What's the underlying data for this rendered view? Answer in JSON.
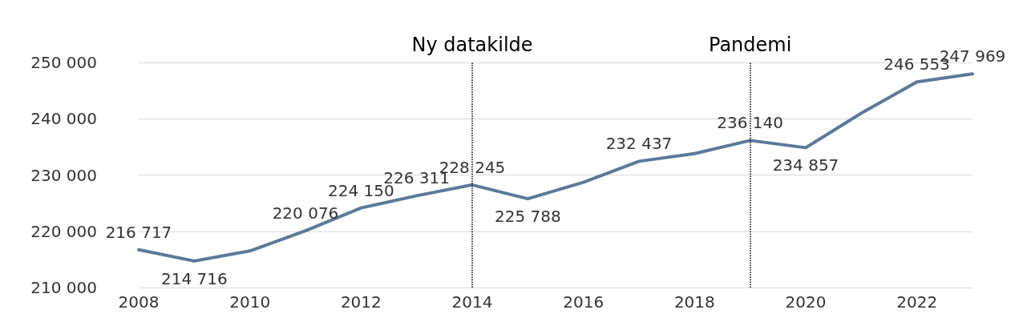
{
  "chart_data": {
    "type": "line",
    "x": [
      2008,
      2009,
      2010,
      2011,
      2012,
      2013,
      2014,
      2015,
      2016,
      2017,
      2018,
      2019,
      2020,
      2021,
      2022,
      2023
    ],
    "series": [
      {
        "color": "#5b7a99",
        "values": [
          216717,
          214716,
          216500,
          220076,
          224150,
          226311,
          228245,
          225788,
          228700,
          232437,
          233800,
          236140,
          234857,
          241000,
          246553,
          247969
        ],
        "value_labels": [
          "216 717",
          "214 716",
          null,
          "220 076",
          "224 150",
          "226 311",
          "228 245",
          "225 788",
          null,
          "232 437",
          null,
          "236 140",
          "234 857",
          null,
          "246 553",
          "247 969"
        ]
      }
    ],
    "xlim": [
      2008,
      2023
    ],
    "xticks": [
      2008,
      2010,
      2012,
      2014,
      2016,
      2018,
      2020,
      2022
    ],
    "ylim": [
      210000,
      250000
    ],
    "yticks": [
      {
        "value": 210000,
        "label": "210 000"
      },
      {
        "value": 220000,
        "label": "220 000"
      },
      {
        "value": 230000,
        "label": "230 000"
      },
      {
        "value": 240000,
        "label": "240 000"
      },
      {
        "value": 250000,
        "label": "250 000"
      }
    ],
    "grid": "y",
    "marker": "none",
    "line_style": "solid",
    "ref_lines": [
      {
        "axis": "x",
        "value": 2014,
        "label": "Ny datakilde",
        "line_style": "dotted",
        "color": "#000000"
      },
      {
        "axis": "x",
        "value": 2019,
        "label": "Pandemi",
        "line_style": "dotted",
        "color": "#000000"
      }
    ]
  }
}
